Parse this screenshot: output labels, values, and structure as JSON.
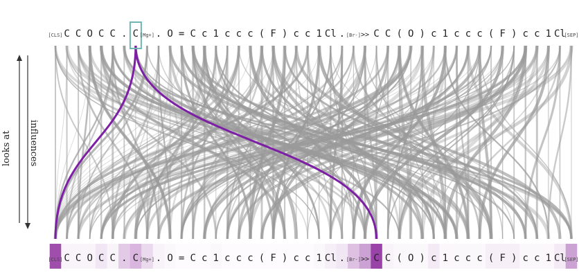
{
  "legend": {
    "looks_at": "looks at",
    "influences": "influences"
  },
  "colors": {
    "edge": "#9a9a9a",
    "highlight": "#7d1fa5",
    "selected_border": "#6fb6b5",
    "heat_base": "#8e2f9e"
  },
  "tokens": [
    {
      "text": "[CLS]",
      "special": true,
      "weight": 0.85
    },
    {
      "text": "C",
      "special": false,
      "weight": 0.05
    },
    {
      "text": "C",
      "special": false,
      "weight": 0.05
    },
    {
      "text": "O",
      "special": false,
      "weight": 0.05
    },
    {
      "text": "C",
      "special": false,
      "weight": 0.12
    },
    {
      "text": "C",
      "special": false,
      "weight": 0.05
    },
    {
      "text": ".",
      "special": false,
      "weight": 0.25
    },
    {
      "text": "C",
      "special": false,
      "weight": 0.35,
      "selected": true
    },
    {
      "text": "[Mg+]",
      "special": true,
      "weight": 0.18
    },
    {
      "text": ".",
      "special": false,
      "weight": 0.06
    },
    {
      "text": "O",
      "special": false,
      "weight": 0.03
    },
    {
      "text": "=",
      "special": false,
      "weight": 0.02
    },
    {
      "text": "C",
      "special": false,
      "weight": 0.02
    },
    {
      "text": "c",
      "special": false,
      "weight": 0.02
    },
    {
      "text": "1",
      "special": false,
      "weight": 0.03
    },
    {
      "text": "c",
      "special": false,
      "weight": 0.02
    },
    {
      "text": "c",
      "special": false,
      "weight": 0.02
    },
    {
      "text": "c",
      "special": false,
      "weight": 0.02
    },
    {
      "text": "(",
      "special": false,
      "weight": 0.02
    },
    {
      "text": "F",
      "special": false,
      "weight": 0.02
    },
    {
      "text": ")",
      "special": false,
      "weight": 0.02
    },
    {
      "text": "c",
      "special": false,
      "weight": 0.02
    },
    {
      "text": "c",
      "special": false,
      "weight": 0.02
    },
    {
      "text": "1",
      "special": false,
      "weight": 0.03
    },
    {
      "text": "Cl",
      "special": false,
      "weight": 0.08
    },
    {
      "text": ".",
      "special": false,
      "weight": 0.12
    },
    {
      "text": "[Br-]",
      "special": true,
      "weight": 0.3
    },
    {
      "text": ">>",
      "special": false,
      "weight": 0.45
    },
    {
      "text": "C",
      "special": false,
      "weight": 0.9
    },
    {
      "text": "C",
      "special": false,
      "weight": 0.06
    },
    {
      "text": "(",
      "special": false,
      "weight": 0.03
    },
    {
      "text": "O",
      "special": false,
      "weight": 0.03
    },
    {
      "text": ")",
      "special": false,
      "weight": 0.03
    },
    {
      "text": "c",
      "special": false,
      "weight": 0.1
    },
    {
      "text": "1",
      "special": false,
      "weight": 0.04
    },
    {
      "text": "c",
      "special": false,
      "weight": 0.03
    },
    {
      "text": "c",
      "special": false,
      "weight": 0.03
    },
    {
      "text": "c",
      "special": false,
      "weight": 0.03
    },
    {
      "text": "(",
      "special": false,
      "weight": 0.08
    },
    {
      "text": "F",
      "special": false,
      "weight": 0.08
    },
    {
      "text": ")",
      "special": false,
      "weight": 0.08
    },
    {
      "text": "c",
      "special": false,
      "weight": 0.03
    },
    {
      "text": "c",
      "special": false,
      "weight": 0.03
    },
    {
      "text": "1",
      "special": false,
      "weight": 0.04
    },
    {
      "text": "Cl",
      "special": false,
      "weight": 0.1
    },
    {
      "text": "[SEP]",
      "special": true,
      "weight": 0.45
    }
  ],
  "highlight_edges": [
    {
      "from": 7,
      "to": 0
    },
    {
      "from": 7,
      "to": 28
    }
  ]
}
